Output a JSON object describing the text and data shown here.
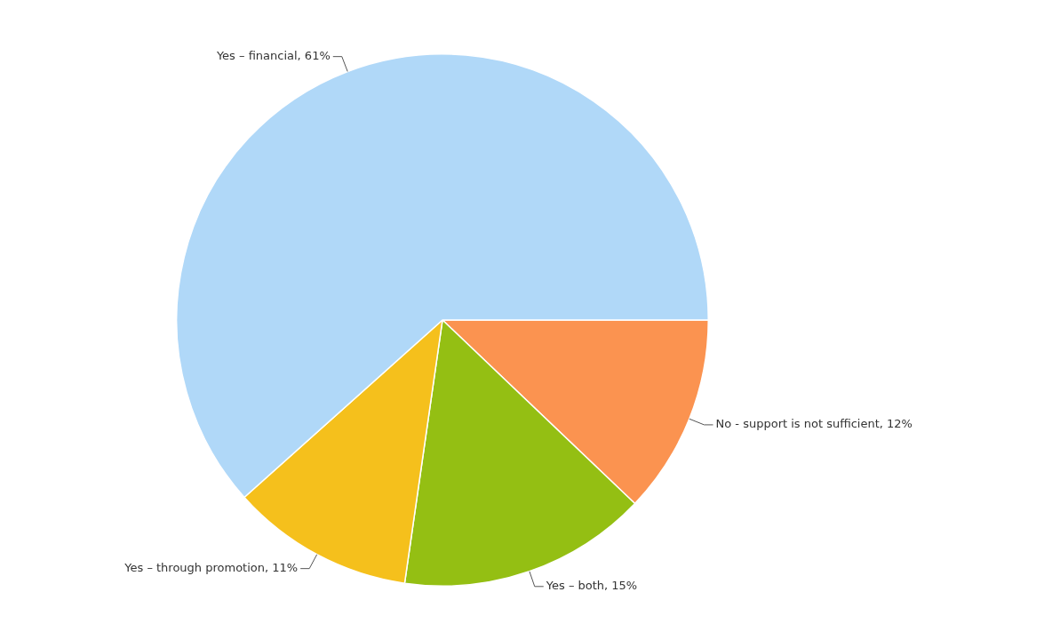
{
  "chart_data": {
    "type": "pie",
    "categories": [
      "No - support is not sufficient",
      "Yes – both",
      "Yes – through promotion",
      "Yes – financial"
    ],
    "values": [
      12,
      15,
      11,
      61
    ],
    "colors": [
      "#fb9350",
      "#94bf13",
      "#f5c01c",
      "#b0d8f8"
    ],
    "value_labels": [
      "12%",
      "15%",
      "11%",
      "61%"
    ],
    "legend": false
  }
}
